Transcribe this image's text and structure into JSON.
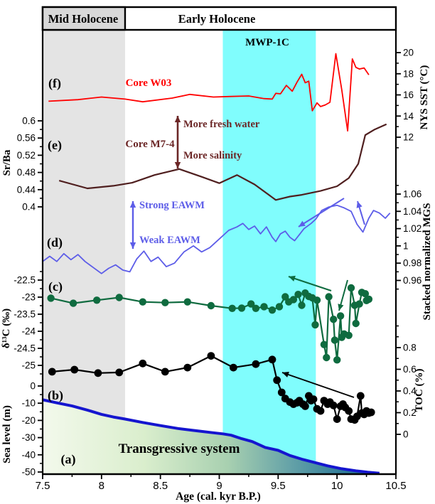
{
  "figure": {
    "header": {
      "left_label": "Mid Holocene",
      "right_label": "Early Holocene",
      "left_bg": "#d8d8d8"
    },
    "bands": [
      {
        "id": "mid-holocene-band",
        "from": 7.5,
        "to": 8.2,
        "color": "#e4e4e4",
        "label": ""
      },
      {
        "id": "mwp-1c-band",
        "from": 9.03,
        "to": 9.82,
        "color": "#80fdfd",
        "label": "MWP-1C"
      }
    ],
    "xaxis": {
      "label": "Age (cal. kyr B.P.)",
      "min": 7.5,
      "max": 10.5,
      "ticks": [
        "7.5",
        "8",
        "8.5",
        "9",
        "9.5",
        "10",
        "10.5"
      ],
      "tick_values": [
        7.5,
        8,
        8.5,
        9,
        9.5,
        10,
        10.5
      ],
      "minor_values": [
        7.75,
        8.25,
        8.75,
        9.25,
        9.75,
        10.25
      ]
    },
    "annotations": [
      {
        "id": "core_w03",
        "text": "Core W03",
        "color": "#ff0000"
      },
      {
        "id": "core_m74",
        "text": "Core M7-4",
        "color": "#6b2626"
      },
      {
        "id": "more_fresh",
        "text": "More fresh water",
        "color": "#6b2626"
      },
      {
        "id": "more_salinity",
        "text": "More salinity",
        "color": "#6b2626"
      },
      {
        "id": "strong_eawm",
        "text": "Strong EAWM",
        "color": "#5d5de8"
      },
      {
        "id": "weak_eawm",
        "text": "Weak EAWM",
        "color": "#5d5de8"
      },
      {
        "id": "mwp",
        "text": "MWP-1C",
        "color": "#000000"
      },
      {
        "id": "transgressive",
        "text": "Transgressive system",
        "color": "#000000"
      },
      {
        "id": "lab_f",
        "text": "(f)",
        "color": "#000000"
      },
      {
        "id": "lab_e",
        "text": "(e)",
        "color": "#000000"
      },
      {
        "id": "lab_d",
        "text": "(d)",
        "color": "#000000"
      },
      {
        "id": "lab_c",
        "text": "(c)",
        "color": "#000000"
      },
      {
        "id": "lab_b",
        "text": "(b)",
        "color": "#000000"
      },
      {
        "id": "lab_a",
        "text": "(a)",
        "color": "#000000"
      }
    ]
  },
  "chart_data": [
    {
      "id": "f",
      "type": "line",
      "name": "Core W03 sea surface temperature",
      "color": "#ff0000",
      "axis_side": "right",
      "ylabel": "NYS SST (°C)",
      "ylim": [
        12,
        20
      ],
      "ticks": [
        12,
        14,
        16,
        18,
        20
      ],
      "tick_labels": [
        "12",
        "14",
        "16",
        "18",
        "20"
      ],
      "minors": [
        11,
        13,
        15,
        17,
        19
      ],
      "points": [
        [
          7.55,
          15.4
        ],
        [
          7.8,
          15.55
        ],
        [
          8.0,
          15.8
        ],
        [
          8.2,
          15.6
        ],
        [
          8.35,
          15.35
        ],
        [
          8.6,
          15.7
        ],
        [
          8.75,
          16.05
        ],
        [
          8.95,
          15.8
        ],
        [
          9.1,
          15.85
        ],
        [
          9.25,
          15.9
        ],
        [
          9.38,
          15.65
        ],
        [
          9.45,
          15.6
        ],
        [
          9.48,
          16.15
        ],
        [
          9.52,
          16.1
        ],
        [
          9.57,
          16.9
        ],
        [
          9.62,
          16.35
        ],
        [
          9.66,
          17.2
        ],
        [
          9.7,
          17.95
        ],
        [
          9.73,
          17.15
        ],
        [
          9.76,
          17.3
        ],
        [
          9.79,
          14.5
        ],
        [
          9.83,
          15.25
        ],
        [
          9.86,
          14.9
        ],
        [
          9.9,
          15.05
        ],
        [
          9.94,
          15.3
        ],
        [
          9.99,
          19.9
        ],
        [
          10.04,
          16.5
        ],
        [
          10.09,
          12.6
        ],
        [
          10.13,
          19.4
        ],
        [
          10.16,
          18.6
        ],
        [
          10.19,
          18.45
        ],
        [
          10.23,
          18.55
        ],
        [
          10.27,
          17.9
        ]
      ]
    },
    {
      "id": "e",
      "type": "line",
      "name": "Core M7-4 Sr/Ba ratio",
      "color": "#4f1f1f",
      "axis_side": "left",
      "ylabel": "Sr/Ba",
      "ylim": [
        0.4,
        0.6
      ],
      "ticks": [
        0.4,
        0.44,
        0.48,
        0.52,
        0.56,
        0.6
      ],
      "tick_labels": [
        "0.4",
        "0.44",
        "0.48",
        "0.52",
        "0.56",
        "0.6"
      ],
      "minors": [
        0.42,
        0.46,
        0.5,
        0.54,
        0.58
      ],
      "points": [
        [
          7.64,
          0.461
        ],
        [
          7.88,
          0.443
        ],
        [
          8.1,
          0.449
        ],
        [
          8.26,
          0.456
        ],
        [
          8.45,
          0.474
        ],
        [
          8.66,
          0.488
        ],
        [
          8.85,
          0.47
        ],
        [
          9.0,
          0.455
        ],
        [
          9.15,
          0.474
        ],
        [
          9.3,
          0.452
        ],
        [
          9.48,
          0.416
        ],
        [
          9.6,
          0.424
        ],
        [
          9.7,
          0.428
        ],
        [
          9.86,
          0.437
        ],
        [
          10.0,
          0.448
        ],
        [
          10.1,
          0.467
        ],
        [
          10.18,
          0.5
        ],
        [
          10.24,
          0.567
        ],
        [
          10.32,
          0.58
        ],
        [
          10.42,
          0.592
        ]
      ]
    },
    {
      "id": "d",
      "type": "line",
      "name": "Stacked normalized mean grain size (EAWM proxy)",
      "color": "#5d5de8",
      "axis_side": "right",
      "ylabel": "Stacked normalized MGS",
      "ylim": [
        0.96,
        1.06
      ],
      "ticks": [
        0.96,
        0.98,
        1.0,
        1.02,
        1.04,
        1.06
      ],
      "tick_labels": [
        "0.96",
        "0.98",
        "1",
        "1.02",
        "1.04",
        "1.06"
      ],
      "minors": [
        0.95,
        0.97,
        0.99,
        1.01,
        1.03,
        1.05,
        1.07
      ],
      "points": [
        [
          7.5,
          0.982
        ],
        [
          7.56,
          0.988
        ],
        [
          7.62,
          0.982
        ],
        [
          7.68,
          0.991
        ],
        [
          7.74,
          0.984
        ],
        [
          7.8,
          0.99
        ],
        [
          7.86,
          0.982
        ],
        [
          7.93,
          0.975
        ],
        [
          8.0,
          0.968
        ],
        [
          8.06,
          0.974
        ],
        [
          8.12,
          0.978
        ],
        [
          8.18,
          0.972
        ],
        [
          8.24,
          0.97
        ],
        [
          8.3,
          0.985
        ],
        [
          8.36,
          0.994
        ],
        [
          8.42,
          0.982
        ],
        [
          8.48,
          0.987
        ],
        [
          8.55,
          0.976
        ],
        [
          8.62,
          0.98
        ],
        [
          8.7,
          0.993
        ],
        [
          8.78,
          1.0
        ],
        [
          8.85,
          0.993
        ],
        [
          8.92,
          0.998
        ],
        [
          9.0,
          1.008
        ],
        [
          9.08,
          1.018
        ],
        [
          9.15,
          1.022
        ],
        [
          9.2,
          1.026
        ],
        [
          9.25,
          1.019
        ],
        [
          9.3,
          1.023
        ],
        [
          9.35,
          1.014
        ],
        [
          9.4,
          1.022
        ],
        [
          9.45,
          1.01
        ],
        [
          9.48,
          1.005
        ],
        [
          9.52,
          1.014
        ],
        [
          9.56,
          1.017
        ],
        [
          9.6,
          1.01
        ],
        [
          9.64,
          1.006
        ],
        [
          9.68,
          1.013
        ],
        [
          9.72,
          1.02
        ],
        [
          9.78,
          1.026
        ],
        [
          9.82,
          1.031
        ],
        [
          9.87,
          1.041
        ],
        [
          9.93,
          1.045
        ],
        [
          10.0,
          1.047
        ],
        [
          10.06,
          1.044
        ],
        [
          10.12,
          1.04
        ],
        [
          10.17,
          1.025
        ],
        [
          10.22,
          1.016
        ],
        [
          10.27,
          1.032
        ],
        [
          10.31,
          1.041
        ],
        [
          10.36,
          1.038
        ],
        [
          10.41,
          1.032
        ],
        [
          10.45,
          1.038
        ]
      ]
    },
    {
      "id": "c",
      "type": "line+markers",
      "name": "delta 13C of organic matter",
      "color": "#0f6b3f",
      "axis_side": "left",
      "ylabel": "δ¹³C (‰)",
      "ylim": [
        -25,
        -22.5
      ],
      "ticks": [
        -25,
        -24.5,
        -24,
        -23.5,
        -23,
        -22.5
      ],
      "tick_labels": [
        "-25",
        "-24.5",
        "-24",
        "-23.5",
        "-23",
        "-22.5"
      ],
      "minors": [
        -25.25,
        -24.75,
        -24.25,
        -23.75,
        -23.25,
        -22.75,
        -22.25
      ],
      "points": [
        [
          7.57,
          -23.03
        ],
        [
          7.76,
          -23.18
        ],
        [
          7.96,
          -23.09
        ],
        [
          8.15,
          -23.01
        ],
        [
          8.35,
          -23.14
        ],
        [
          8.54,
          -23.16
        ],
        [
          8.73,
          -23.14
        ],
        [
          8.93,
          -23.25
        ],
        [
          9.11,
          -23.33
        ],
        [
          9.19,
          -23.32
        ],
        [
          9.27,
          -23.2
        ],
        [
          9.31,
          -23.33
        ],
        [
          9.38,
          -23.28
        ],
        [
          9.45,
          -23.38
        ],
        [
          9.51,
          -23.28
        ],
        [
          9.56,
          -22.99
        ],
        [
          9.59,
          -23.14
        ],
        [
          9.63,
          -23.07
        ],
        [
          9.67,
          -22.92
        ],
        [
          9.7,
          -23.24
        ],
        [
          9.73,
          -22.88
        ],
        [
          9.76,
          -22.98
        ],
        [
          9.79,
          -23.02
        ],
        [
          9.815,
          -23.81
        ],
        [
          9.83,
          -23.09
        ],
        [
          9.89,
          -24.39
        ],
        [
          9.91,
          -24.77
        ],
        [
          9.93,
          -22.99
        ],
        [
          9.97,
          -23.65
        ],
        [
          9.98,
          -24.26
        ],
        [
          10.0,
          -24.84
        ],
        [
          10.03,
          -23.55
        ],
        [
          10.04,
          -24.18
        ],
        [
          10.06,
          -24.08
        ],
        [
          10.1,
          -24.12
        ],
        [
          10.12,
          -22.73
        ],
        [
          10.15,
          -23.24
        ],
        [
          10.16,
          -23.77
        ],
        [
          10.19,
          -23.2
        ],
        [
          10.21,
          -22.86
        ],
        [
          10.24,
          -22.9
        ],
        [
          10.25,
          -23.1
        ],
        [
          10.27,
          -23.06
        ]
      ]
    },
    {
      "id": "b",
      "type": "line+markers",
      "name": "Total organic carbon",
      "color": "#000000",
      "axis_side": "right",
      "ylabel": "TOC (%)",
      "ylim": [
        0,
        0.8
      ],
      "ticks": [
        0,
        0.2,
        0.4,
        0.6,
        0.8
      ],
      "tick_labels": [
        "0",
        "0.2",
        "0.4",
        "0.6",
        "0.8"
      ],
      "minors": [
        0.1,
        0.3,
        0.5,
        0.7,
        0.9,
        1.0
      ],
      "points": [
        [
          7.58,
          0.578
        ],
        [
          7.77,
          0.597
        ],
        [
          7.97,
          0.565
        ],
        [
          8.15,
          0.571
        ],
        [
          8.35,
          0.654
        ],
        [
          8.54,
          0.578
        ],
        [
          8.73,
          0.616
        ],
        [
          8.93,
          0.724
        ],
        [
          9.12,
          0.616
        ],
        [
          9.31,
          0.648
        ],
        [
          9.45,
          0.69
        ],
        [
          9.49,
          0.5
        ],
        [
          9.53,
          0.387
        ],
        [
          9.56,
          0.33
        ],
        [
          9.6,
          0.298
        ],
        [
          9.63,
          0.279
        ],
        [
          9.66,
          0.292
        ],
        [
          9.68,
          0.311
        ],
        [
          9.71,
          0.279
        ],
        [
          9.73,
          0.26
        ],
        [
          9.76,
          0.355
        ],
        [
          9.78,
          0.311
        ],
        [
          9.8,
          0.324
        ],
        [
          9.83,
          0.235
        ],
        [
          9.86,
          0.216
        ],
        [
          9.89,
          0.311
        ],
        [
          9.92,
          0.279
        ],
        [
          9.94,
          0.298
        ],
        [
          9.97,
          0.267
        ],
        [
          10.0,
          0.14
        ],
        [
          10.03,
          0.26
        ],
        [
          10.05,
          0.279
        ],
        [
          10.07,
          0.248
        ],
        [
          10.1,
          0.216
        ],
        [
          10.12,
          0.14
        ],
        [
          10.15,
          0.133
        ],
        [
          10.17,
          0.165
        ],
        [
          10.2,
          0.355
        ],
        [
          10.21,
          0.197
        ],
        [
          10.23,
          0.184
        ],
        [
          10.25,
          0.216
        ],
        [
          10.27,
          0.197
        ],
        [
          10.29,
          0.203
        ]
      ]
    },
    {
      "id": "a",
      "type": "area+line",
      "name": "Relative sea level",
      "color": "#1515cf",
      "axis_side": "left",
      "ylabel": "Sea level (m)",
      "ylim": [
        -50,
        0
      ],
      "ticks": [
        0,
        -10,
        -20,
        -30,
        -40,
        -50
      ],
      "tick_labels": [
        "0",
        "-10",
        "-20",
        "-30",
        "-40",
        "-50"
      ],
      "minors": [
        -5,
        -15,
        -25,
        -35,
        -45
      ],
      "fill_label": "Transgressive system",
      "points": [
        [
          7.5,
          -8.0
        ],
        [
          7.62,
          -9.8
        ],
        [
          7.75,
          -11.6
        ],
        [
          7.88,
          -14.0
        ],
        [
          8.0,
          -16.5
        ],
        [
          8.1,
          -18.0
        ],
        [
          8.2,
          -19.2
        ],
        [
          8.35,
          -21.2
        ],
        [
          8.5,
          -23.0
        ],
        [
          8.65,
          -24.7
        ],
        [
          8.8,
          -26.0
        ],
        [
          8.95,
          -27.2
        ],
        [
          9.03,
          -27.8
        ],
        [
          9.1,
          -28.6
        ],
        [
          9.19,
          -30.6
        ],
        [
          9.28,
          -32.3
        ],
        [
          9.39,
          -35.7
        ],
        [
          9.5,
          -37.4
        ],
        [
          9.6,
          -40.4
        ],
        [
          9.7,
          -42.5
        ],
        [
          9.8,
          -44.3
        ],
        [
          9.92,
          -46.4
        ],
        [
          10.04,
          -48.1
        ],
        [
          10.16,
          -49.3
        ],
        [
          10.26,
          -50.1
        ],
        [
          10.36,
          -50.7
        ]
      ]
    }
  ]
}
